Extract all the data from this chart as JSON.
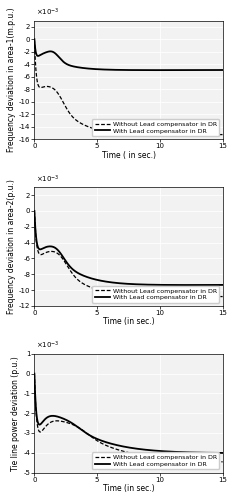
{
  "t_max": 15,
  "subplot1": {
    "ylabel": "Frequency deviation in area-1(m.p.u.)",
    "xlabel": "Time ( in sec.)",
    "ylim": [
      -0.016,
      0.003
    ],
    "yticks": [
      -16,
      -14,
      -12,
      -10,
      -8,
      -6,
      -4,
      -2,
      0,
      2
    ]
  },
  "subplot2": {
    "ylabel": "Frequency deviation in area-2(p.u.)",
    "xlabel": "Time (in sec.)",
    "ylim": [
      -0.012,
      0.003
    ],
    "yticks": [
      -12,
      -10,
      -8,
      -6,
      -4,
      -2,
      0,
      2
    ]
  },
  "subplot3": {
    "ylabel": "Tie line power deviation (p.u.)",
    "xlabel": "Time (in sec.)",
    "ylim": [
      -0.005,
      0.001
    ],
    "yticks": [
      -5,
      -4,
      -3,
      -2,
      -1,
      0,
      1
    ]
  },
  "legend_without": "Without Lead compensator in DR",
  "legend_with": "With Lead compensator in DR",
  "bg_color": "#f2f2f2",
  "font_size_label": 5.5,
  "font_size_tick": 5,
  "font_size_legend": 4.5
}
